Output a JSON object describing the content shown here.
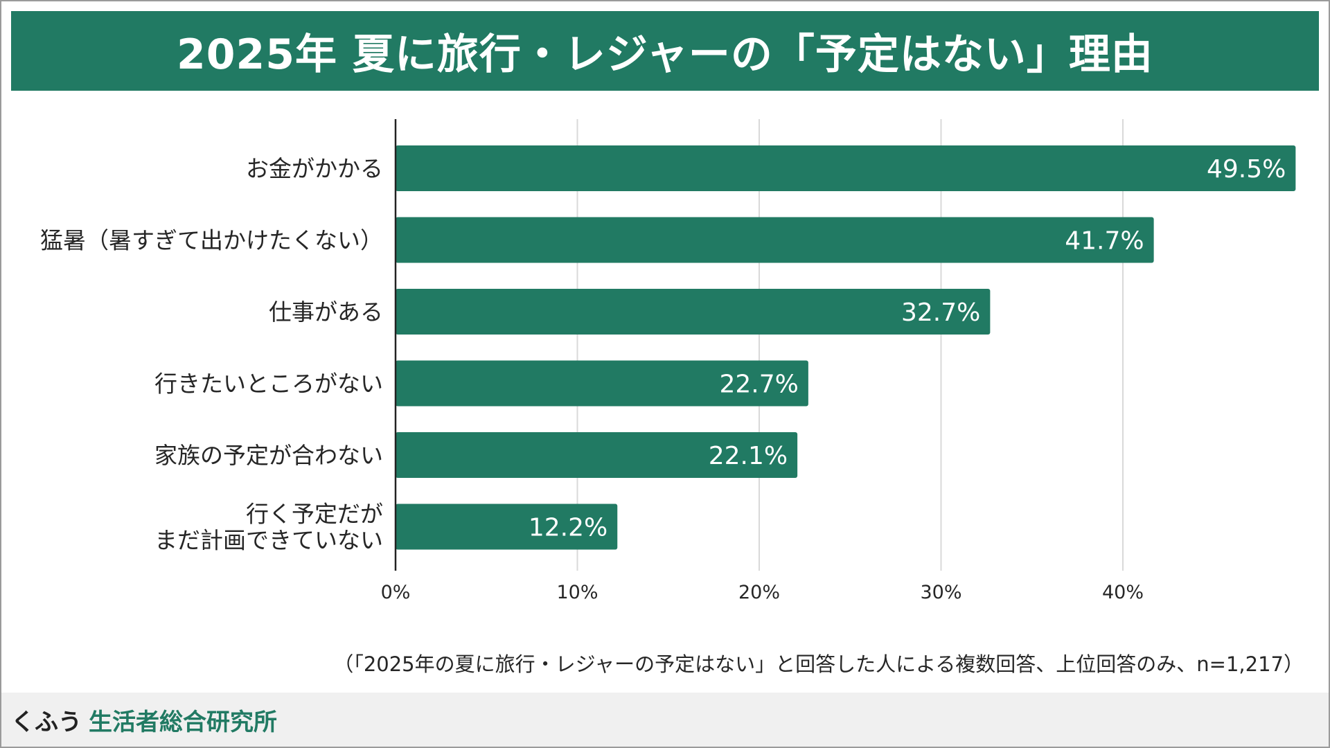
{
  "header": {
    "title": "2025年 夏に旅行・レジャーの「予定はない」理由"
  },
  "colors": {
    "accent": "#217a63",
    "axis": "#222222",
    "grid": "#d9d9d9",
    "text": "#262626"
  },
  "chart_data": {
    "type": "bar",
    "orientation": "horizontal",
    "title": "2025年 夏に旅行・レジャーの「予定はない」理由",
    "categories": [
      "お金がかかる",
      "猛暑（暑すぎて出かけたくない）",
      "仕事がある",
      "行きたいところがない",
      "家族の予定が合わない",
      "行く予定だが\nまだ計画できていない"
    ],
    "values": [
      49.5,
      41.7,
      32.7,
      22.7,
      22.1,
      12.2
    ],
    "value_labels": [
      "49.5%",
      "41.7%",
      "32.7%",
      "22.7%",
      "22.1%",
      "12.2%"
    ],
    "x_ticks": [
      0,
      10,
      20,
      30,
      40
    ],
    "x_tick_labels": [
      "0%",
      "10%",
      "20%",
      "30%",
      "40%"
    ],
    "xlim": [
      0,
      50
    ],
    "unit": "%",
    "grid": true,
    "xlabel": "",
    "ylabel": ""
  },
  "note": "（「2025年の夏に旅行・レジャーの予定はない」と回答した人による複数回答、上位回答のみ、n=1,217）",
  "footer": {
    "brand_prefix": "くふう",
    "brand_name": "生活者総合研究所"
  }
}
